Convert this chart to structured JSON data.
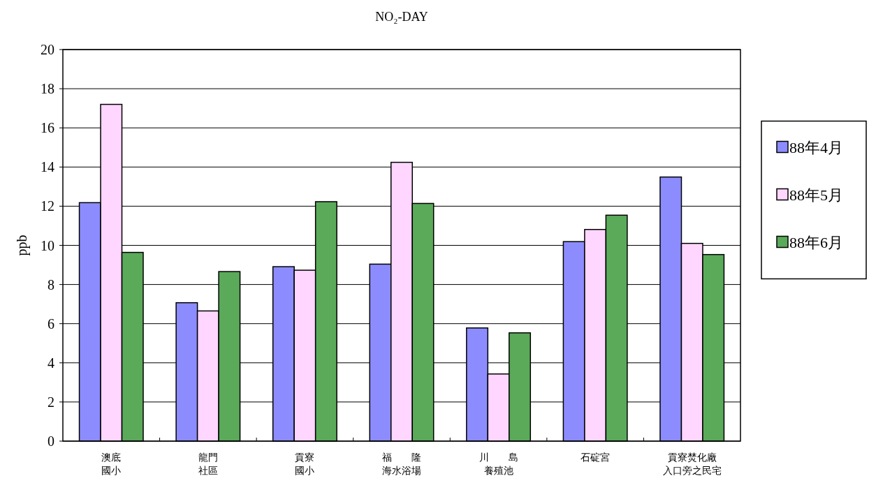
{
  "chart_data": {
    "type": "bar",
    "title": "NO₂-DAY",
    "ylabel": "ppb",
    "categories": [
      "澳底國小",
      "龍門社區",
      "貢寮國小",
      "福　　隆海水浴場",
      "川　　島養殖池",
      "石碇宮",
      "貢寮焚化廠入口旁之民宅"
    ],
    "series": [
      {
        "name": "88年4月",
        "color": "#8c8cff",
        "values": [
          12.18,
          7.07,
          8.91,
          9.04,
          5.78,
          10.19,
          13.49
        ]
      },
      {
        "name": "88年5月",
        "color": "#ffd6ff",
        "values": [
          17.2,
          6.65,
          8.73,
          14.24,
          3.43,
          10.81,
          10.1
        ]
      },
      {
        "name": "88年6月",
        "color": "#5aaa5a",
        "values": [
          9.64,
          8.66,
          12.23,
          12.14,
          5.53,
          11.54,
          9.53
        ]
      }
    ],
    "ylim": [
      0,
      20
    ],
    "yticks": [
      0,
      2,
      4,
      6,
      8,
      10,
      12,
      14,
      16,
      18,
      20
    ],
    "grid": "y",
    "legend": "right"
  }
}
